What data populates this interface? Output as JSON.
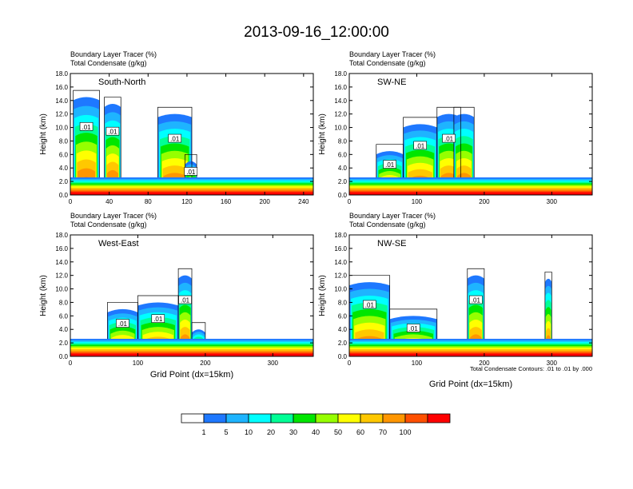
{
  "figure": {
    "title": "2013-09-16_12:00:00",
    "footnote": "Total Condensate Contours: .01 to .01 by .000",
    "xlabel": "Grid Point (dx=15km)",
    "ylabel": "Height (km)"
  },
  "colorbar": {
    "colors": [
      "#ffffff",
      "#1e78ff",
      "#1eb4ff",
      "#00ffff",
      "#00ff96",
      "#00e600",
      "#96ff00",
      "#ffff00",
      "#ffc800",
      "#ff9600",
      "#ff5000",
      "#ff0000"
    ],
    "labels": [
      "1",
      "5",
      "10",
      "20",
      "30",
      "40",
      "50",
      "60",
      "70",
      "100"
    ]
  },
  "chart_data": [
    {
      "type": "heatmap",
      "subtitle_left_1": "Boundary Layer Tracer   (%)",
      "subtitle_left_2": "Total Condensate   (g/kg)",
      "label": "South-North",
      "xlim": [
        0,
        250
      ],
      "ylim": [
        0,
        18
      ],
      "xticks": [
        0,
        40,
        80,
        120,
        160,
        200,
        240
      ],
      "yticks": [
        "0.0",
        "2.0",
        "4.0",
        "6.0",
        "8.0",
        "10.0",
        "12.0",
        "14.0",
        "16.0",
        "18.0"
      ],
      "marker_x": 127,
      "contour_labels": [
        ".01",
        ".01",
        ".01",
        ".01"
      ]
    },
    {
      "type": "heatmap",
      "subtitle_left_1": "Boundary Layer Tracer   (%)",
      "subtitle_left_2": "Total Condensate   (g/kg)",
      "label": "SW-NE",
      "xlim": [
        0,
        360
      ],
      "ylim": [
        0,
        18
      ],
      "xticks": [
        0,
        100,
        200,
        300
      ],
      "yticks": [
        "0.0",
        "2.0",
        "4.0",
        "6.0",
        "8.0",
        "10.0",
        "12.0",
        "14.0",
        "16.0",
        "18.0"
      ],
      "marker_x": 178,
      "contour_labels": [
        ".01",
        ".01",
        ".01"
      ]
    },
    {
      "type": "heatmap",
      "subtitle_left_1": "Boundary Layer Tracer   (%)",
      "subtitle_left_2": "Total Condensate   (g/kg)",
      "label": "West-East",
      "xlim": [
        0,
        360
      ],
      "ylim": [
        0,
        18
      ],
      "xticks": [
        0,
        100,
        200,
        300
      ],
      "yticks": [
        "0.0",
        "2.0",
        "4.0",
        "6.0",
        "8.0",
        "10.0",
        "12.0",
        "14.0",
        "16.0",
        "18.0"
      ],
      "marker_x": 180,
      "contour_labels": [
        ".01",
        ".01",
        ".01"
      ]
    },
    {
      "type": "heatmap",
      "subtitle_left_1": "Boundary Layer Tracer   (%)",
      "subtitle_left_2": "Total Condensate   (g/kg)",
      "label": "NW-SE",
      "xlim": [
        0,
        360
      ],
      "ylim": [
        0,
        18
      ],
      "xticks": [
        0,
        100,
        200,
        300
      ],
      "yticks": [
        "0.0",
        "2.0",
        "4.0",
        "6.0",
        "8.0",
        "10.0",
        "12.0",
        "14.0",
        "16.0",
        "18.0"
      ],
      "marker_x": 180,
      "contour_labels": [
        ".01",
        ".01",
        ".01"
      ]
    }
  ]
}
